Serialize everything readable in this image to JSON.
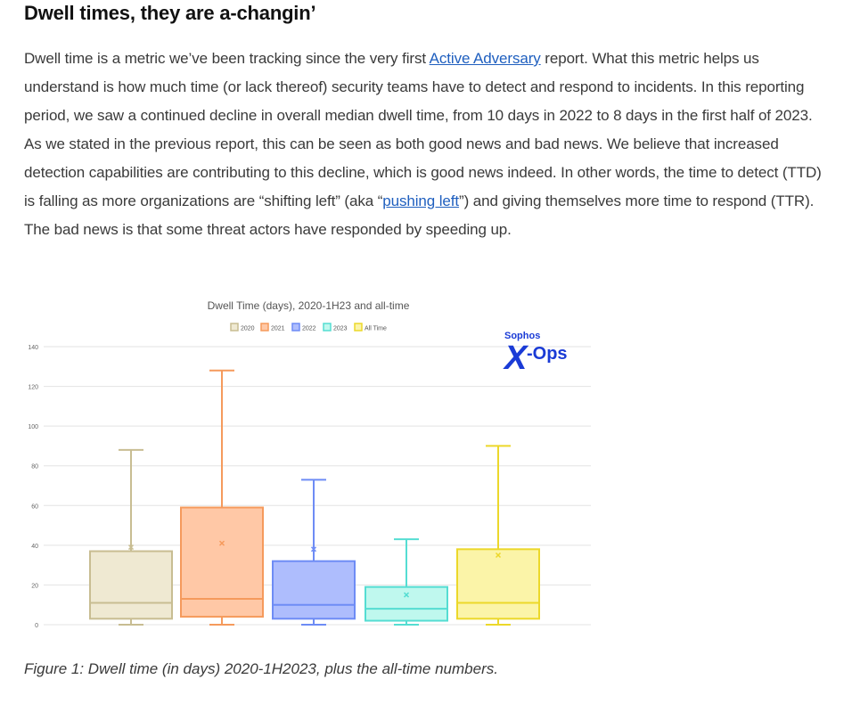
{
  "article": {
    "heading": "Dwell times, they are a-changin’",
    "p1_a": "Dwell time is a metric we’ve been tracking since the very first ",
    "p1_link1": "Active Adversary",
    "p1_b": " report. What this metric helps us understand is how much time (or lack thereof) security teams have to detect and respond to incidents. In this reporting period, we saw a continued decline in overall median dwell time, from 10 days in 2022 to 8 days in the first half of 2023. As we stated in the previous report, this can be seen as both good news and bad news. We believe that increased detection capabilities are contributing to this decline, which is good news indeed. In other words, the time to detect (TTD) is falling as more organizations are “shifting left” (aka “",
    "p1_link2": "pushing left",
    "p1_c": "”) and giving themselves more time to respond (TTR). The bad news is that some threat actors have responded by speeding up.",
    "caption": "Figure 1: Dwell time (in days) 2020-1H2023, plus the all-time numbers."
  },
  "logo": {
    "top": "Sophos",
    "x": "X",
    "ops": "-Ops"
  },
  "chart_data": {
    "type": "boxplot",
    "title": "Dwell Time (days), 2020-1H23 and all-time",
    "xlabel": "",
    "ylabel": "",
    "ylim": [
      0,
      140
    ],
    "yticks": [
      0,
      20,
      40,
      60,
      80,
      100,
      120,
      140
    ],
    "grid": true,
    "legend_position": "top",
    "series": [
      {
        "name": "2020",
        "min": 0,
        "q1": 3,
        "median": 11,
        "q3": 37,
        "max": 88,
        "mean": 39,
        "fill": "#efe9d2",
        "stroke": "#c8bd92"
      },
      {
        "name": "2021",
        "min": 0,
        "q1": 4,
        "median": 13,
        "q3": 59,
        "max": 128,
        "mean": 41,
        "fill": "#ffc8a6",
        "stroke": "#f59a5c"
      },
      {
        "name": "2022",
        "min": 0,
        "q1": 3,
        "median": 10,
        "q3": 32,
        "max": 73,
        "mean": 38,
        "fill": "#aebdfd",
        "stroke": "#6e8cf5"
      },
      {
        "name": "2023",
        "min": 0,
        "q1": 2,
        "median": 8,
        "q3": 19,
        "max": 43,
        "mean": 15,
        "fill": "#bff8ee",
        "stroke": "#55ddd2"
      },
      {
        "name": "All Time",
        "min": 0,
        "q1": 3,
        "median": 11,
        "q3": 38,
        "max": 90,
        "mean": 35,
        "fill": "#fbf4a8",
        "stroke": "#ecd82a"
      }
    ]
  }
}
